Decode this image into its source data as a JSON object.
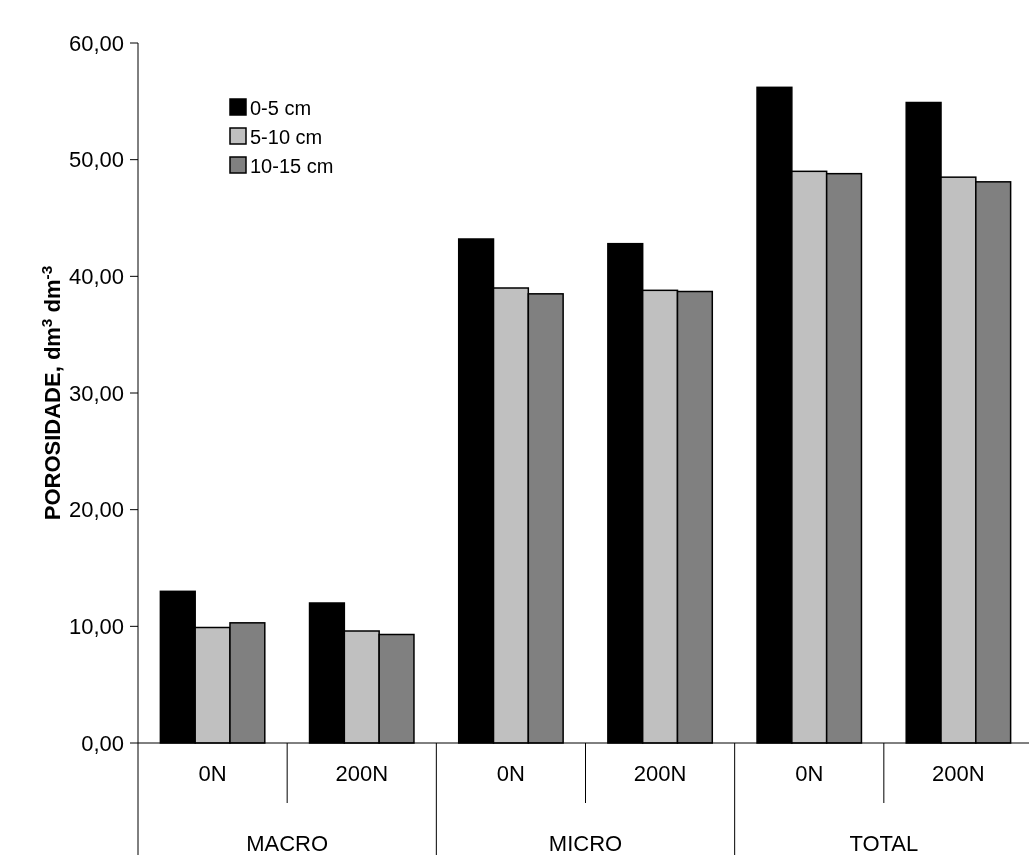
{
  "chart_data": {
    "type": "bar",
    "ylabel": "POROSIDADE, dm$^{3}$ dm$^{-3}$",
    "categories": [
      "0N",
      "200N",
      "0N",
      "200N",
      "0N",
      "200N"
    ],
    "annotations": [
      "MACRO",
      "MICRO",
      "TOTAL"
    ],
    "series": [
      {
        "name": "0-5 cm",
        "color": "#000000",
        "values": [
          13.0,
          12.0,
          43.2,
          42.8,
          56.2,
          54.9
        ]
      },
      {
        "name": "5-10 cm",
        "color": "#c0c0c0",
        "values": [
          9.9,
          9.6,
          39.0,
          38.8,
          49.0,
          48.5
        ]
      },
      {
        "name": "10-15 cm",
        "color": "#808080",
        "values": [
          10.3,
          9.3,
          38.5,
          38.7,
          48.8,
          48.1
        ]
      }
    ],
    "ylim": [
      0,
      60
    ],
    "yticks": [
      {
        "value": 0,
        "label": "0,00"
      },
      {
        "value": 10,
        "label": "10,00"
      },
      {
        "value": 20,
        "label": "20,00"
      },
      {
        "value": 30,
        "label": "30,00"
      },
      {
        "value": 40,
        "label": "40,00"
      },
      {
        "value": 50,
        "label": "50,00"
      },
      {
        "value": 60,
        "label": "60,00"
      }
    ],
    "grid": false,
    "legend": "top left"
  }
}
